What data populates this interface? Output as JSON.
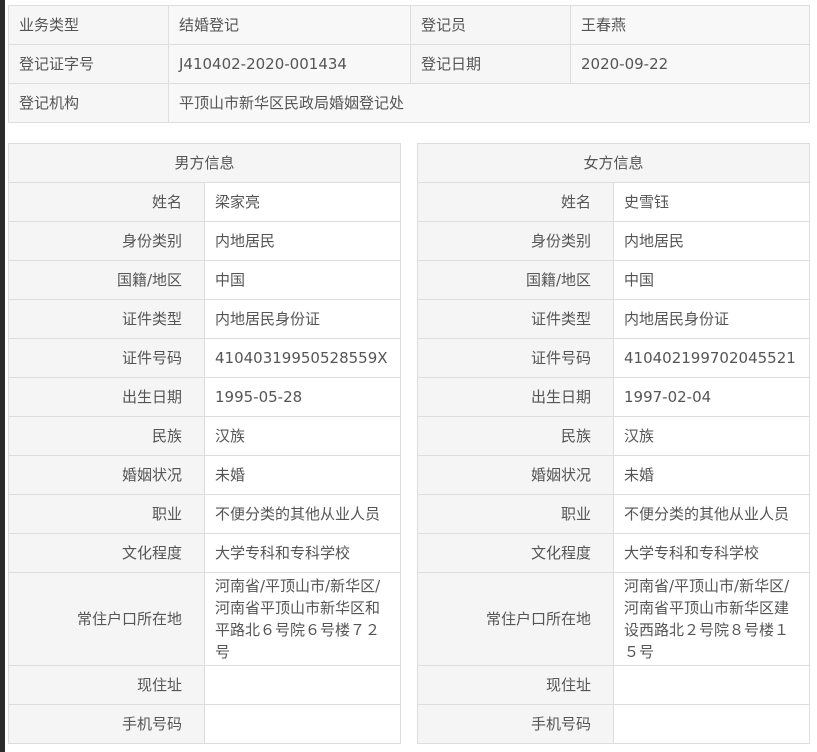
{
  "summary": {
    "rows": [
      [
        {
          "label": "业务类型",
          "value": "结婚登记"
        },
        {
          "label": "登记员",
          "value": "王春燕"
        }
      ],
      [
        {
          "label": "登记证字号",
          "value": "J410402-2020-001434"
        },
        {
          "label": "登记日期",
          "value": "2020-09-22"
        }
      ]
    ],
    "org_label": "登记机构",
    "org_value": "平顶山市新华区民政局婚姻登记处"
  },
  "male": {
    "title": "男方信息",
    "fields": [
      {
        "label": "姓名",
        "value": "梁家亮"
      },
      {
        "label": "身份类别",
        "value": "内地居民"
      },
      {
        "label": "国籍/地区",
        "value": "中国"
      },
      {
        "label": "证件类型",
        "value": "内地居民身份证"
      },
      {
        "label": "证件号码",
        "value": "41040319950528559X"
      },
      {
        "label": "出生日期",
        "value": "1995-05-28"
      },
      {
        "label": "民族",
        "value": "汉族"
      },
      {
        "label": "婚姻状况",
        "value": "未婚"
      },
      {
        "label": "职业",
        "value": "不便分类的其他从业人员"
      },
      {
        "label": "文化程度",
        "value": "大学专科和专科学校"
      },
      {
        "label": "常住户口所在地",
        "value": "河南省/平顶山市/新华区/河南省平顶山市新华区和平路北６号院６号楼７２号"
      },
      {
        "label": "现住址",
        "value": ""
      },
      {
        "label": "手机号码",
        "value": ""
      }
    ]
  },
  "female": {
    "title": "女方信息",
    "fields": [
      {
        "label": "姓名",
        "value": "史雪钰"
      },
      {
        "label": "身份类别",
        "value": "内地居民"
      },
      {
        "label": "国籍/地区",
        "value": "中国"
      },
      {
        "label": "证件类型",
        "value": "内地居民身份证"
      },
      {
        "label": "证件号码",
        "value": "410402199702045521"
      },
      {
        "label": "出生日期",
        "value": "1997-02-04"
      },
      {
        "label": "民族",
        "value": "汉族"
      },
      {
        "label": "婚姻状况",
        "value": "未婚"
      },
      {
        "label": "职业",
        "value": "不便分类的其他从业人员"
      },
      {
        "label": "文化程度",
        "value": "大学专科和专科学校"
      },
      {
        "label": "常住户口所在地",
        "value": "河南省/平顶山市/新华区/河南省平顶山市新华区建设西路北２号院８号楼１５号"
      },
      {
        "label": "现住址",
        "value": ""
      },
      {
        "label": "手机号码",
        "value": ""
      }
    ]
  }
}
